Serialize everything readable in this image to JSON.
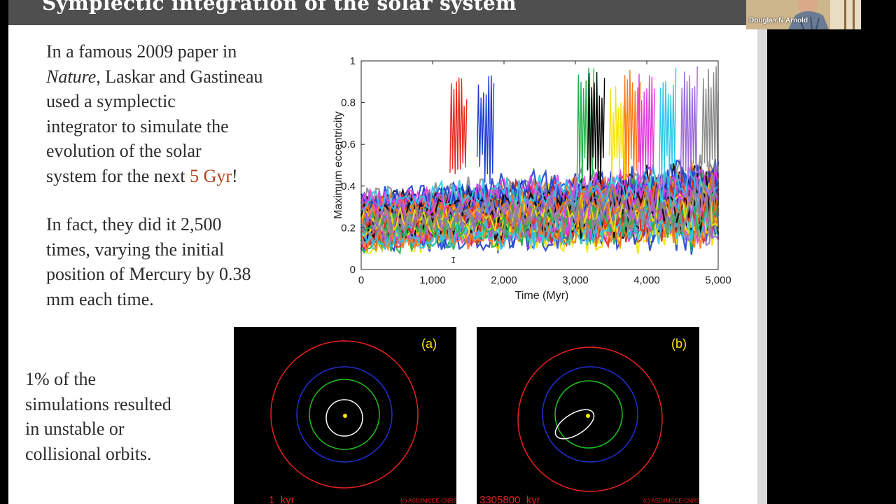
{
  "slide": {
    "title": "Symplectic integration of the solar system",
    "para1": {
      "line1": "In a famous 2009 paper in",
      "line2_italic": "Nature",
      "line2_rest": ", Laskar and Gastineau",
      "line3": "used a symplectic",
      "line4": "integrator to simulate the",
      "line5": "evolution of the solar",
      "line6_pre": "system for the next ",
      "line6_highlight": "5 Gyr",
      "line6_post": "!"
    },
    "para2": {
      "line1": "In fact, they did it 2,500",
      "line2": "times, varying the initial",
      "line3": "position of Mercury by 0.38",
      "line4": "mm each time."
    },
    "para3": {
      "line1": "1% of the",
      "line2": "simulations resulted",
      "line3": "in unstable or",
      "line4": "collisional orbits."
    },
    "accent_color": "#b5421b"
  },
  "chart_data": {
    "type": "line",
    "xlabel": "Time (Myr)",
    "ylabel": "Maximum eccentricity",
    "xlim": [
      0,
      5000
    ],
    "ylim": [
      0,
      1
    ],
    "x_ticks": [
      "0",
      "1,000",
      "2,000",
      "3,000",
      "4,000",
      "5,000"
    ],
    "y_ticks": [
      "0",
      "0.2",
      "0.4",
      "0.6",
      "0.8",
      "1"
    ],
    "grid": false,
    "series_colors": [
      "#e8281e",
      "#1e3fd0",
      "#23b14a",
      "#000000",
      "#f5e60b",
      "#ff7a1a",
      "#e23de0",
      "#2ec8e8",
      "#9b6ad8",
      "#8a8a8a"
    ],
    "spikes": [
      {
        "x": 1370,
        "y": 0.93
      },
      {
        "x": 1750,
        "y": 0.95
      },
      {
        "x": 3150,
        "y": 0.97
      },
      {
        "x": 3300,
        "y": 0.96
      },
      {
        "x": 3600,
        "y": 0.88
      },
      {
        "x": 3800,
        "y": 0.98
      },
      {
        "x": 4000,
        "y": 0.95
      },
      {
        "x": 4300,
        "y": 0.97
      },
      {
        "x": 4600,
        "y": 0.98
      },
      {
        "x": 4900,
        "y": 0.99
      }
    ]
  },
  "orbit_panels": [
    {
      "label": "(a)",
      "time_text": "1  kyr",
      "credit": "(c) ASD/IMCCE-CNRS"
    },
    {
      "label": "(b)",
      "time_text": "3305800  kyr",
      "credit": "(c) ASD/IMCCE-CNRS"
    }
  ],
  "orbit_colors": {
    "earth": "#e8201c",
    "venus": "#2130d0",
    "mercury_ref": "#20c020",
    "mercury": "#ffffff",
    "sun": "#ffe800"
  },
  "webcam": {
    "name": "Douglas N Arnold"
  }
}
